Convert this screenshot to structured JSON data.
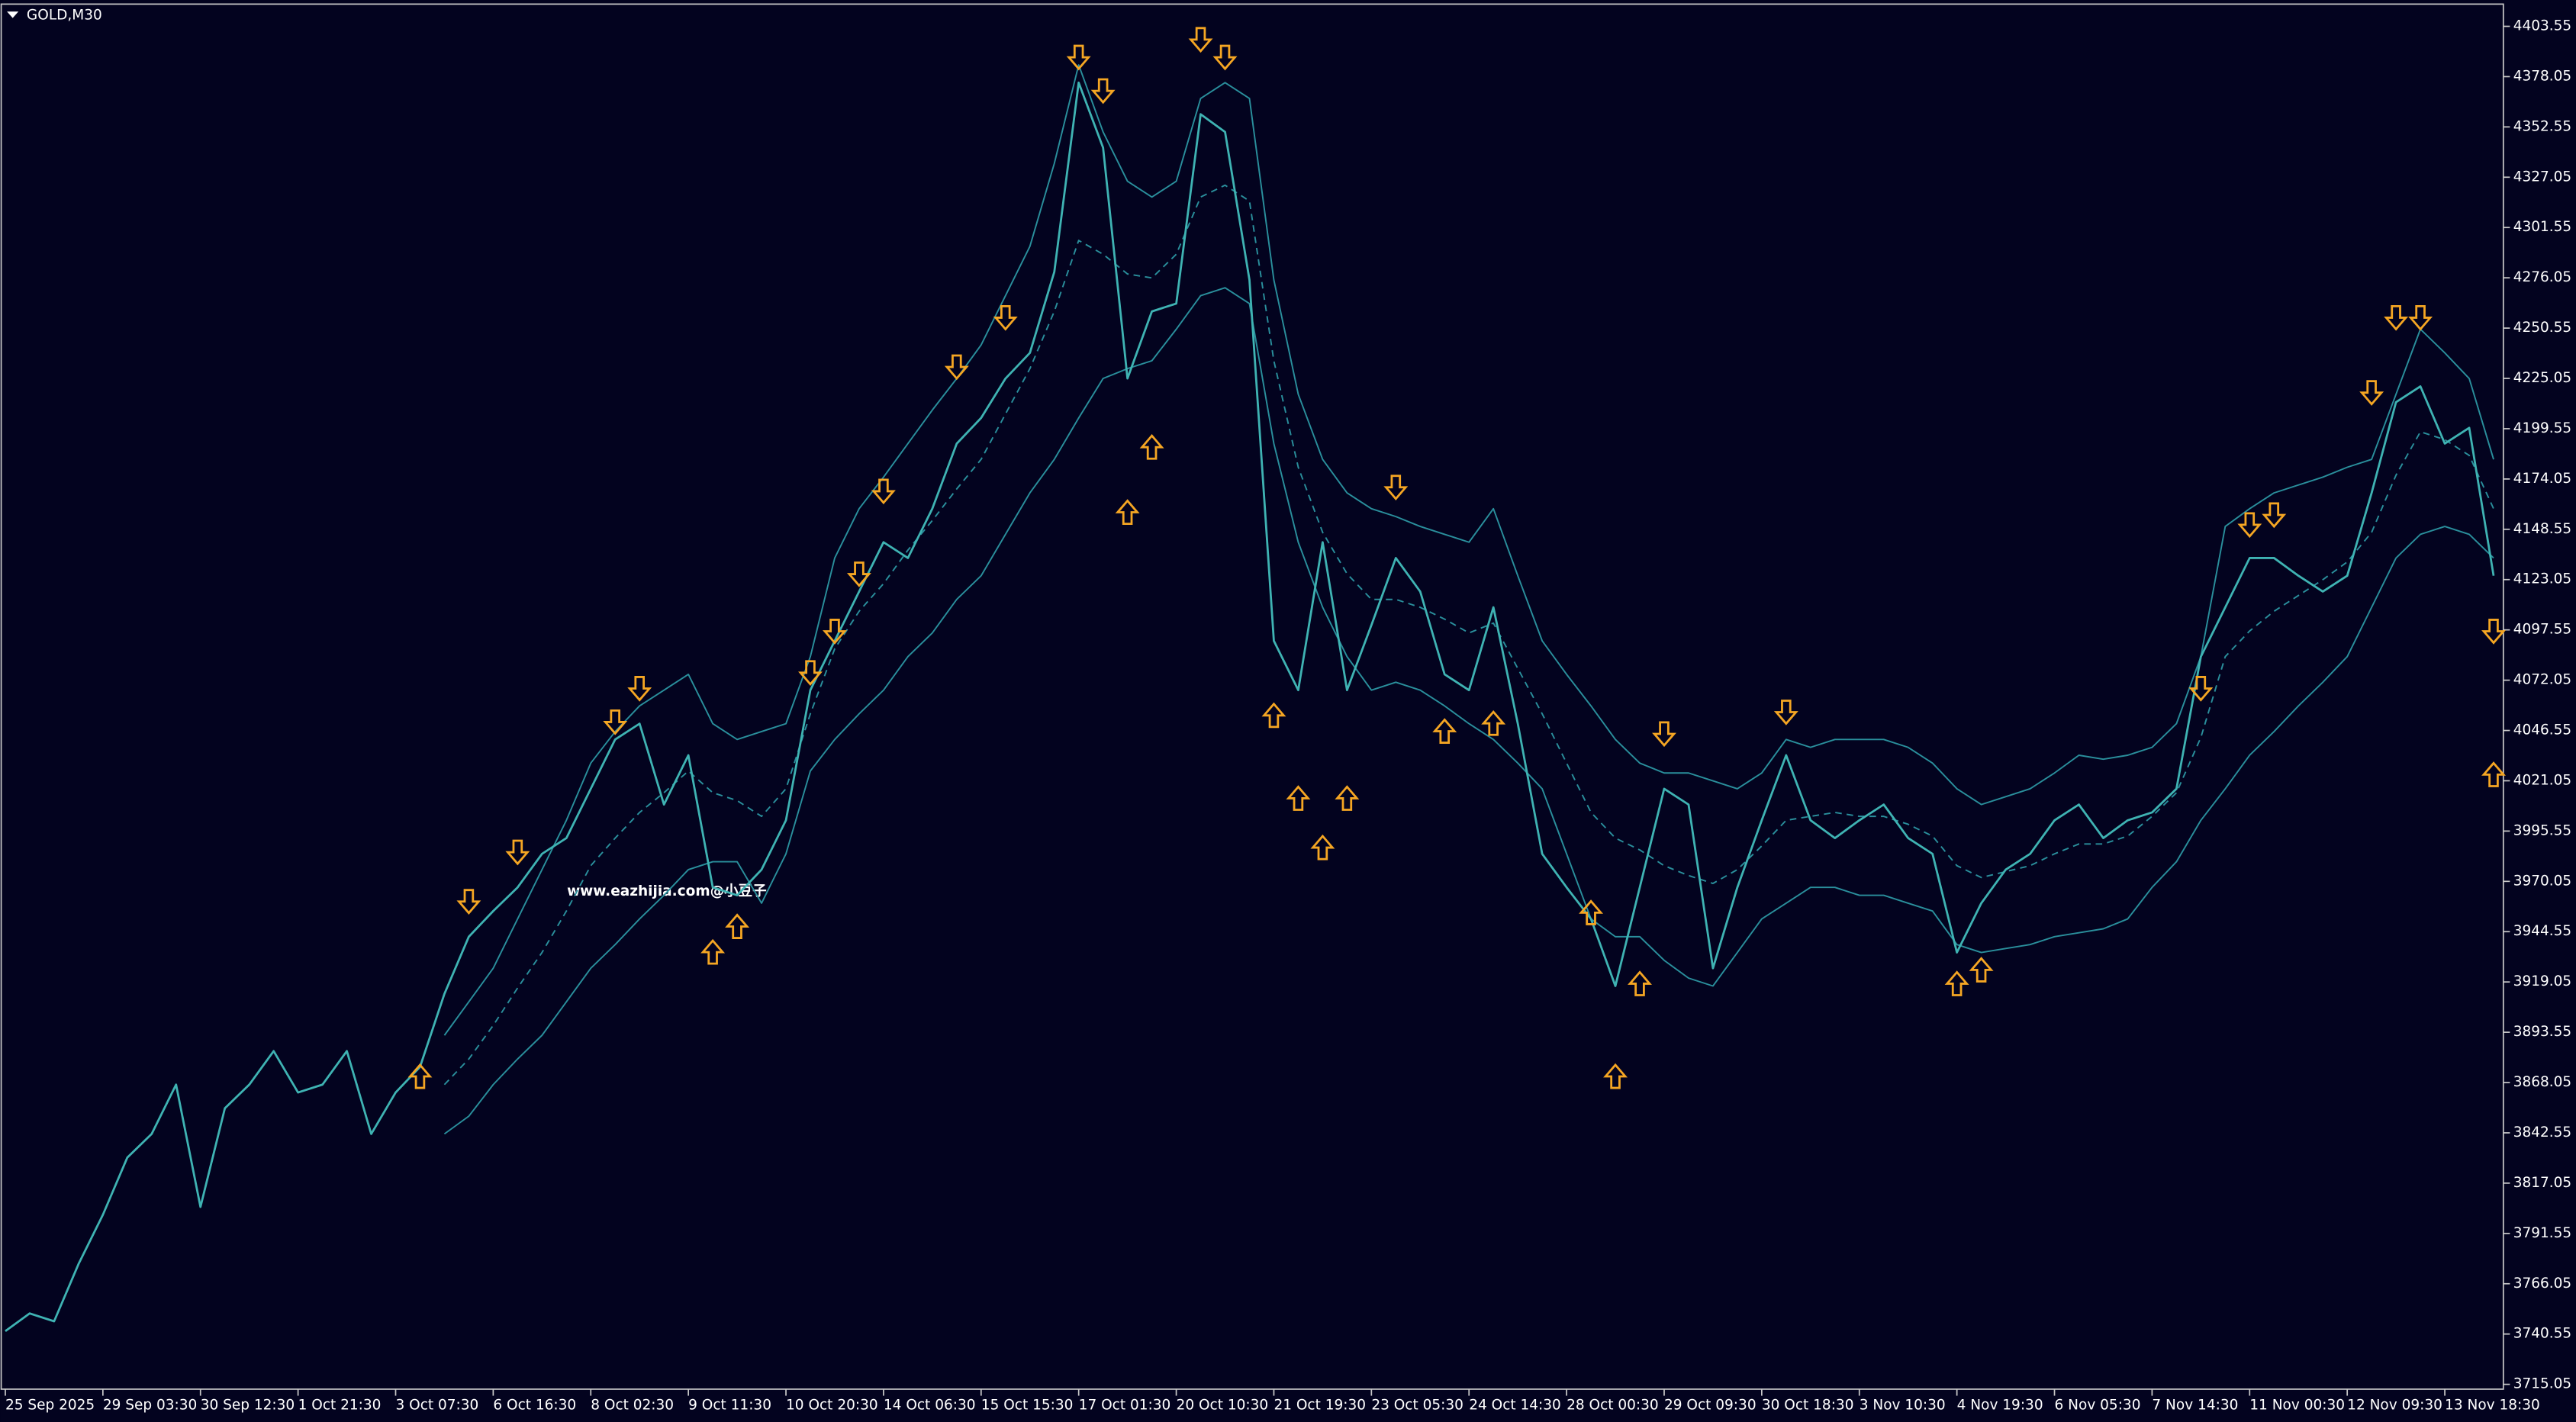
{
  "chart_data": {
    "type": "line",
    "title": "GOLD,M30",
    "annotation": "www.eazhijia.com@小豆子",
    "background": "#03031f",
    "categories": [
      "25 Sep 2025",
      null,
      null,
      null,
      "29 Sep 03:30",
      null,
      null,
      null,
      "30 Sep 12:30",
      null,
      null,
      null,
      "1 Oct 21:30",
      null,
      null,
      null,
      "3 Oct 07:30",
      null,
      null,
      null,
      "6 Oct 16:30",
      null,
      null,
      null,
      "8 Oct 02:30",
      null,
      null,
      null,
      "9 Oct 11:30",
      null,
      null,
      null,
      "10 Oct 20:30",
      null,
      null,
      null,
      "14 Oct 06:30",
      null,
      null,
      null,
      "15 Oct 15:30",
      null,
      null,
      null,
      "17 Oct 01:30",
      null,
      null,
      null,
      "20 Oct 10:30",
      null,
      null,
      null,
      "21 Oct 19:30",
      null,
      null,
      null,
      "23 Oct 05:30",
      null,
      null,
      null,
      "24 Oct 14:30",
      null,
      null,
      null,
      "28 Oct 00:30",
      null,
      null,
      null,
      "29 Oct 09:30",
      null,
      null,
      null,
      "30 Oct 18:30",
      null,
      null,
      null,
      "3 Nov 10:30",
      null,
      null,
      null,
      "4 Nov 19:30",
      null,
      null,
      null,
      "6 Nov 05:30",
      null,
      null,
      null,
      "7 Nov 14:30",
      null,
      null,
      null,
      "11 Nov 00:30",
      null,
      null,
      null,
      "12 Nov 09:30",
      null,
      null,
      null,
      "13 Nov 18:30",
      null,
      null
    ],
    "series": [
      {
        "color": "#3fb3b3",
        "width": 1.3,
        "dashed": false,
        "values": [
          3742,
          3751,
          3747,
          3776,
          3801,
          3830,
          3842,
          3867,
          3805,
          3855,
          3867,
          3884,
          3863,
          3867,
          3884,
          3842,
          3863,
          3876,
          3913,
          3942,
          3955,
          3967,
          3984,
          3992,
          4017,
          4042,
          4050,
          4009,
          4034,
          3967,
          3963,
          3976,
          4001,
          4067,
          4092,
          4117,
          4142,
          4134,
          4159,
          4192,
          4205,
          4225,
          4238,
          4279,
          4375,
          4342,
          4225,
          4259,
          4263,
          4359,
          4350,
          4275,
          4092,
          4067,
          4142,
          4067,
          4100,
          4134,
          4117,
          4075,
          4067,
          4109,
          4050,
          3984,
          3967,
          3951,
          3917,
          3967,
          4017,
          4009,
          3926,
          3967,
          4001,
          4034,
          4001,
          3992,
          4001,
          4009,
          3992,
          3984,
          3934,
          3959,
          3976,
          3984,
          4001,
          4009,
          3992,
          4001,
          4005,
          4017,
          4084,
          4109,
          4134,
          4134,
          4125,
          4117,
          4125,
          4167,
          4213,
          4221,
          4192,
          4200,
          4125
        ]
      },
      {
        "color": "#2a8f9c",
        "width": 0.9,
        "dashed": false,
        "values": [
          null,
          null,
          null,
          null,
          null,
          null,
          null,
          null,
          null,
          null,
          null,
          null,
          null,
          null,
          null,
          null,
          null,
          null,
          3892,
          3909,
          3926,
          3951,
          3976,
          4001,
          4030,
          4046,
          4059,
          4067,
          4075,
          4050,
          4042,
          4046,
          4050,
          4084,
          4134,
          4159,
          4175,
          4192,
          4209,
          4225,
          4242,
          4267,
          4292,
          4334,
          4384,
          4350,
          4325,
          4317,
          4325,
          4367,
          4375,
          4367,
          4275,
          4217,
          4184,
          4167,
          4159,
          4155,
          4150,
          4146,
          4142,
          4159,
          4125,
          4092,
          4075,
          4059,
          4042,
          4030,
          4025,
          4025,
          4021,
          4017,
          4025,
          4042,
          4038,
          4042,
          4042,
          4042,
          4038,
          4030,
          4017,
          4009,
          4013,
          4017,
          4025,
          4034,
          4032,
          4034,
          4038,
          4050,
          4084,
          4150,
          4159,
          4167,
          4171,
          4175,
          4180,
          4184,
          4217,
          4250,
          4238,
          4225,
          4184
        ]
      },
      {
        "color": "#2a8f9c",
        "width": 0.9,
        "dashed": true,
        "values": [
          null,
          null,
          null,
          null,
          null,
          null,
          null,
          null,
          null,
          null,
          null,
          null,
          null,
          null,
          null,
          null,
          null,
          null,
          3867,
          3880,
          3897,
          3916,
          3934,
          3955,
          3978,
          3992,
          4005,
          4015,
          4026,
          4015,
          4011,
          4003,
          4017,
          4055,
          4088,
          4107,
          4121,
          4138,
          4153,
          4169,
          4184,
          4207,
          4230,
          4259,
          4295,
          4288,
          4278,
          4276,
          4288,
          4317,
          4323,
          4315,
          4234,
          4180,
          4147,
          4126,
          4113,
          4113,
          4109,
          4103,
          4096,
          4101,
          4078,
          4055,
          4030,
          4005,
          3992,
          3986,
          3978,
          3973,
          3969,
          3976,
          3988,
          4001,
          4003,
          4005,
          4003,
          4003,
          3999,
          3993,
          3978,
          3972,
          3975,
          3978,
          3984,
          3989,
          3989,
          3993,
          4003,
          4015,
          4043,
          4084,
          4097,
          4107,
          4115,
          4123,
          4132,
          4147,
          4176,
          4198,
          4194,
          4186,
          4159
        ]
      },
      {
        "color": "#2a8f9c",
        "width": 0.9,
        "dashed": false,
        "values": [
          null,
          null,
          null,
          null,
          null,
          null,
          null,
          null,
          null,
          null,
          null,
          null,
          null,
          null,
          null,
          null,
          null,
          null,
          3842,
          3851,
          3867,
          3880,
          3892,
          3909,
          3926,
          3938,
          3951,
          3963,
          3976,
          3980,
          3980,
          3959,
          3984,
          4026,
          4042,
          4055,
          4067,
          4084,
          4096,
          4113,
          4125,
          4146,
          4167,
          4184,
          4205,
          4225,
          4230,
          4234,
          4250,
          4267,
          4271,
          4263,
          4192,
          4142,
          4109,
          4084,
          4067,
          4071,
          4067,
          4059,
          4050,
          4042,
          4030,
          4017,
          3984,
          3951,
          3942,
          3942,
          3930,
          3921,
          3917,
          3934,
          3951,
          3959,
          3967,
          3967,
          3963,
          3963,
          3959,
          3955,
          3938,
          3934,
          3936,
          3938,
          3942,
          3944,
          3946,
          3951,
          3967,
          3980,
          4001,
          4017,
          4034,
          4046,
          4059,
          4071,
          4084,
          4109,
          4134,
          4146,
          4150,
          4146,
          4134
        ]
      }
    ],
    "markers": [
      {
        "shape": "down",
        "color": "#f5a623",
        "values": [
          null,
          null,
          null,
          null,
          null,
          null,
          null,
          null,
          null,
          null,
          null,
          null,
          null,
          null,
          null,
          null,
          null,
          null,
          null,
          3959,
          null,
          3984,
          null,
          null,
          null,
          4050,
          4067,
          null,
          null,
          null,
          null,
          null,
          null,
          4075,
          4096,
          4125,
          4167,
          null,
          null,
          4230,
          null,
          4255,
          null,
          null,
          4387,
          4370,
          null,
          null,
          null,
          4396,
          4387,
          null,
          null,
          null,
          null,
          null,
          null,
          4169,
          null,
          null,
          null,
          null,
          null,
          null,
          null,
          null,
          null,
          null,
          4044,
          null,
          null,
          null,
          null,
          4055,
          null,
          null,
          null,
          null,
          null,
          null,
          null,
          null,
          null,
          null,
          null,
          null,
          null,
          null,
          null,
          null,
          4067,
          null,
          4150,
          4155,
          null,
          null,
          null,
          4217,
          4255,
          4255,
          null,
          null,
          4096
        ]
      },
      {
        "shape": "up",
        "color": "#f5a623",
        "values": [
          null,
          null,
          null,
          null,
          null,
          null,
          null,
          null,
          null,
          null,
          null,
          null,
          null,
          null,
          null,
          null,
          null,
          3872,
          null,
          null,
          null,
          null,
          null,
          null,
          null,
          null,
          null,
          null,
          null,
          3935,
          3948,
          null,
          null,
          null,
          null,
          null,
          null,
          null,
          null,
          null,
          null,
          null,
          null,
          null,
          null,
          null,
          4158,
          4191,
          null,
          null,
          null,
          null,
          4055,
          4013,
          3988,
          4013,
          null,
          null,
          null,
          4047,
          null,
          4051,
          null,
          null,
          null,
          3955,
          3872,
          3919,
          null,
          null,
          null,
          null,
          null,
          null,
          null,
          null,
          null,
          null,
          null,
          null,
          3919,
          3926,
          null,
          null,
          null,
          null,
          null,
          null,
          null,
          null,
          null,
          null,
          null,
          null,
          null,
          null,
          null,
          null,
          null,
          null,
          null,
          null,
          4025
        ]
      }
    ],
    "ylim": [
      3712.6,
      4414.4
    ],
    "yticks": [
      4403.55,
      4378.05,
      4352.55,
      4327.05,
      4301.55,
      4276.05,
      4250.55,
      4225.05,
      4199.55,
      4174.05,
      4148.55,
      4123.05,
      4097.55,
      4072.05,
      4046.55,
      4021.05,
      3995.55,
      3970.05,
      3944.55,
      3919.05,
      3893.55,
      3868.05,
      3842.55,
      3817.05,
      3791.55,
      3766.05,
      3740.55,
      3715.05
    ]
  }
}
